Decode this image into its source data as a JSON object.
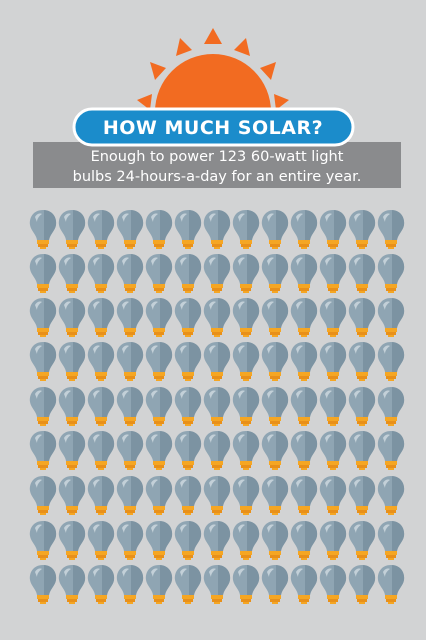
{
  "header": {
    "title": "HOW MUCH SOLAR?"
  },
  "description": {
    "lines": [
      "Enough to power 123 60-watt light",
      "bulbs 24-hours-a-day for an entire year."
    ]
  }
}
